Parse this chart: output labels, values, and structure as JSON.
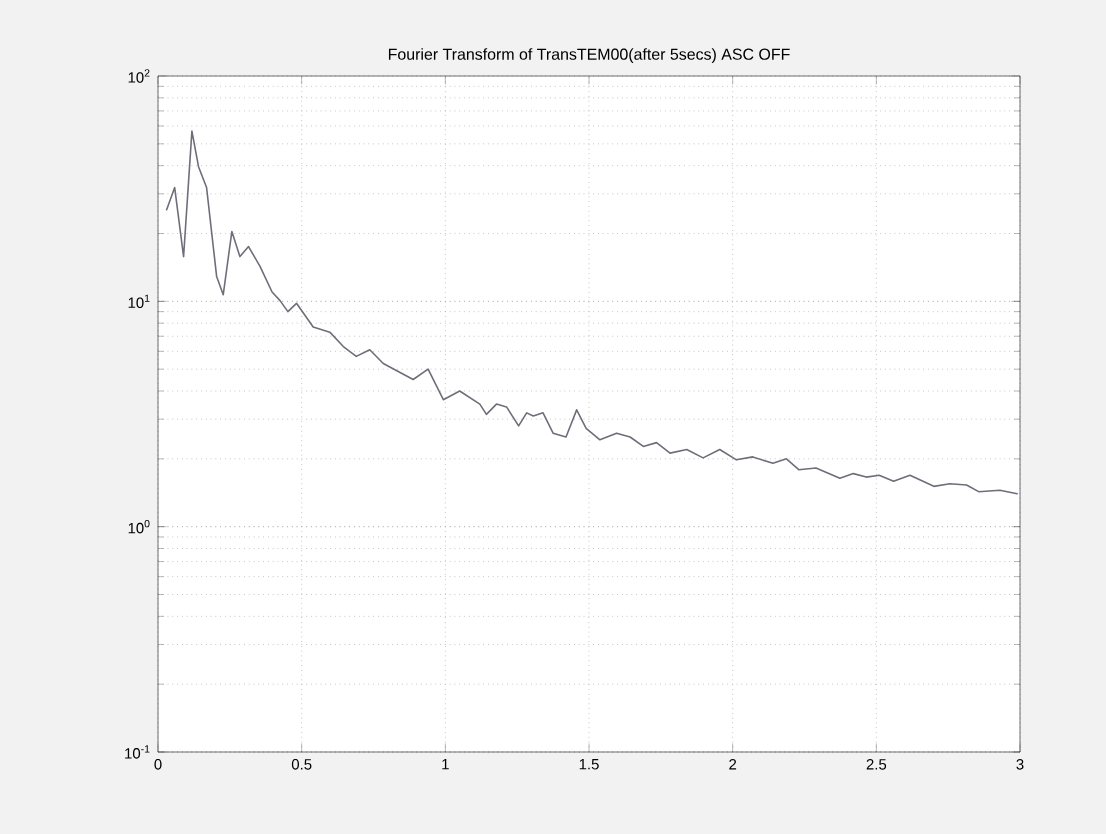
{
  "chart_data": {
    "type": "line",
    "title": "Fourier Transform of TransTEM00(after 5secs) ASC OFF",
    "log": "y",
    "grid": true,
    "xlim": [
      0,
      3
    ],
    "ylim": [
      0.1,
      100
    ],
    "xticks": [
      0,
      0.5,
      1,
      1.5,
      2,
      2.5,
      3
    ],
    "yticks": [
      {
        "value": 0.1,
        "label": "10$^{-1}$"
      },
      {
        "value": 1,
        "label": "10$^{0}$"
      },
      {
        "value": 10,
        "label": "10$^{1}$"
      },
      {
        "value": 100,
        "label": "10$^{2}$"
      }
    ],
    "series": [
      {
        "color": "#6e6e7a",
        "x": [
          0.03,
          0.058,
          0.089,
          0.118,
          0.141,
          0.169,
          0.204,
          0.227,
          0.257,
          0.285,
          0.315,
          0.355,
          0.397,
          0.424,
          0.452,
          0.482,
          0.54,
          0.598,
          0.645,
          0.69,
          0.737,
          0.784,
          0.888,
          0.94,
          0.993,
          1.05,
          1.12,
          1.143,
          1.178,
          1.213,
          1.255,
          1.283,
          1.306,
          1.34,
          1.375,
          1.42,
          1.457,
          1.49,
          1.538,
          1.596,
          1.643,
          1.689,
          1.735,
          1.782,
          1.84,
          1.897,
          1.955,
          2.013,
          2.07,
          2.14,
          2.187,
          2.23,
          2.29,
          2.373,
          2.42,
          2.465,
          2.51,
          2.56,
          2.617,
          2.7,
          2.756,
          2.814,
          2.856,
          2.93,
          2.99
        ],
        "values": [
          25.5,
          32,
          15.8,
          57,
          39.6,
          32,
          12.9,
          10.7,
          20.4,
          15.8,
          17.5,
          14.3,
          11,
          10.1,
          9.0,
          9.8,
          7.7,
          7.3,
          6.3,
          5.7,
          6.1,
          5.3,
          4.5,
          5.0,
          3.66,
          4.0,
          3.5,
          3.15,
          3.5,
          3.4,
          2.8,
          3.2,
          3.1,
          3.2,
          2.6,
          2.5,
          3.3,
          2.73,
          2.43,
          2.6,
          2.5,
          2.27,
          2.36,
          2.12,
          2.2,
          2.02,
          2.2,
          1.98,
          2.04,
          1.91,
          2.0,
          1.79,
          1.82,
          1.64,
          1.72,
          1.66,
          1.69,
          1.59,
          1.69,
          1.51,
          1.55,
          1.53,
          1.43,
          1.45,
          1.4
        ]
      }
    ]
  }
}
